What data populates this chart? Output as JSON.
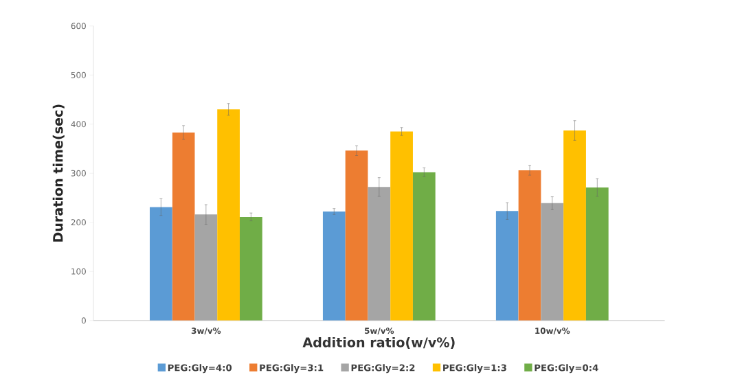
{
  "chart_data": {
    "type": "bar",
    "xlabel": "Addition ratio(w/v%)",
    "ylabel": "Duration time(sec)",
    "categories": [
      "3w/v%",
      "5w/v%",
      "10w/v%"
    ],
    "series": [
      {
        "name": "PEG:Gly=4:0",
        "color": "#5b9bd5",
        "values": [
          231,
          222,
          223
        ],
        "errors": [
          17,
          6,
          17
        ]
      },
      {
        "name": "PEG:Gly=3:1",
        "color": "#ed7d31",
        "values": [
          383,
          346,
          306
        ],
        "errors": [
          14,
          10,
          10
        ]
      },
      {
        "name": "PEG:Gly=2:2",
        "color": "#a5a5a5",
        "values": [
          216,
          272,
          239
        ],
        "errors": [
          20,
          19,
          13
        ]
      },
      {
        "name": "PEG:Gly=1:3",
        "color": "#ffc000",
        "values": [
          430,
          385,
          387
        ],
        "errors": [
          12,
          8,
          20
        ]
      },
      {
        "name": "PEG:Gly=0:4",
        "color": "#70ad47",
        "values": [
          211,
          302,
          271
        ],
        "errors": [
          8,
          9,
          18
        ]
      }
    ],
    "ylim": [
      0,
      600
    ],
    "yticks": [
      0,
      100,
      200,
      300,
      400,
      500,
      600
    ],
    "grid": false,
    "legend": "bottom"
  }
}
